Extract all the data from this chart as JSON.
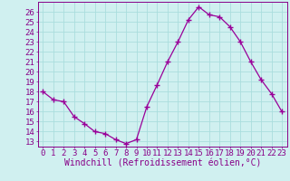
{
  "x": [
    0,
    1,
    2,
    3,
    4,
    5,
    6,
    7,
    8,
    9,
    10,
    11,
    12,
    13,
    14,
    15,
    16,
    17,
    18,
    19,
    20,
    21,
    22,
    23
  ],
  "y": [
    18.0,
    17.2,
    17.0,
    15.5,
    14.8,
    14.0,
    13.8,
    13.2,
    12.8,
    13.2,
    16.5,
    18.7,
    21.0,
    23.0,
    25.2,
    26.5,
    25.7,
    25.5,
    24.5,
    23.0,
    21.0,
    19.2,
    17.8,
    16.0
  ],
  "line_color": "#990099",
  "marker": "+",
  "marker_size": 4,
  "bg_color": "#d0f0f0",
  "grid_color": "#aadddd",
  "ylabel_ticks": [
    13,
    14,
    15,
    16,
    17,
    18,
    19,
    20,
    21,
    22,
    23,
    24,
    25,
    26
  ],
  "xlabel": "Windchill (Refroidissement éolien,°C)",
  "xlim": [
    -0.5,
    23.5
  ],
  "ylim": [
    12.5,
    27.0
  ],
  "tick_label_color": "#880088",
  "axis_label_color": "#880088",
  "xlabel_fontsize": 7.0,
  "tick_fontsize": 6.5
}
